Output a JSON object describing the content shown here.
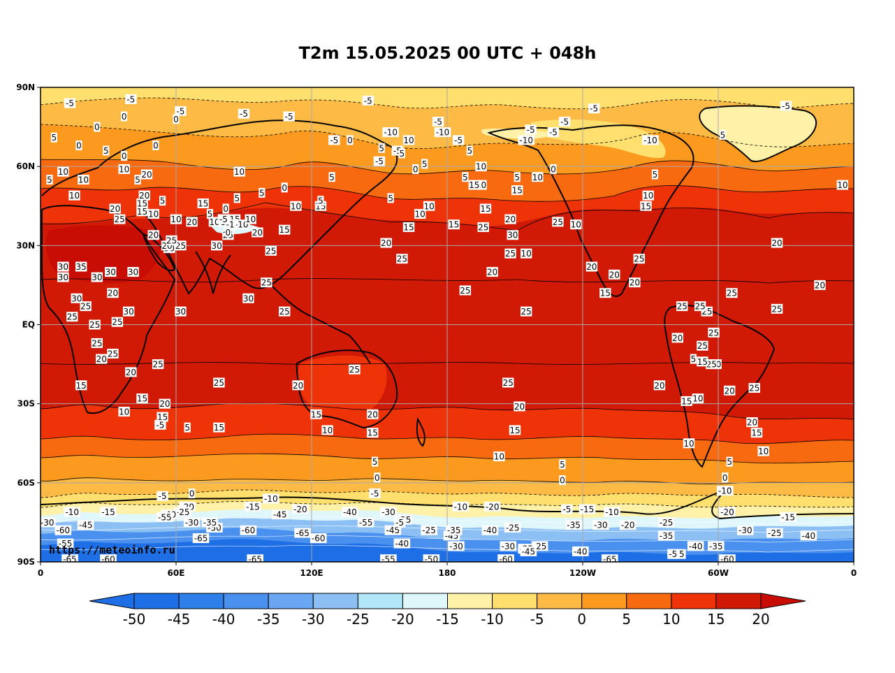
{
  "title": "T2m 15.05.2025 00 UTC + 048h",
  "watermark": "https://meteoinfo.ru",
  "lat_labels": [
    "90N",
    "60N",
    "30N",
    "EQ",
    "30S",
    "60S",
    "90S"
  ],
  "lon_labels": [
    "0",
    "60E",
    "120E",
    "180",
    "120W",
    "60W",
    "0"
  ],
  "colorbar": {
    "ticks": [
      "-50",
      "-45",
      "-40",
      "-35",
      "-30",
      "-25",
      "-20",
      "-15",
      "-10",
      "-5",
      "0",
      "5",
      "10",
      "15",
      "20"
    ],
    "colors": [
      "#1e6fe6",
      "#2f7fea",
      "#4a90ee",
      "#6aa6f2",
      "#8cc0f5",
      "#b0e6f8",
      "#dff6fb",
      "#fff2a8",
      "#ffdf6e",
      "#fdbb46",
      "#fb9a1e",
      "#f86a10",
      "#ee3308",
      "#d01a06"
    ],
    "under_color": "#1e6fe6",
    "over_color": "#c80e04"
  },
  "contour_labels": [
    {
      "t": "-5",
      "lon": 13,
      "lat": 84
    },
    {
      "t": "-5",
      "lon": 40,
      "lat": 85.5
    },
    {
      "t": "-5",
      "lon": 62,
      "lat": 81
    },
    {
      "t": "-5",
      "lon": 110,
      "lat": 79
    },
    {
      "t": "-5",
      "lon": 145,
      "lat": 85
    },
    {
      "t": "-5",
      "lon": -115,
      "lat": 82
    },
    {
      "t": "-5",
      "lon": -30,
      "lat": 83
    },
    {
      "t": "0",
      "lon": 37,
      "lat": 79
    },
    {
      "t": "0",
      "lon": 25,
      "lat": 75
    },
    {
      "t": "5",
      "lon": 6,
      "lat": 71
    },
    {
      "t": "0",
      "lon": 17,
      "lat": 68
    },
    {
      "t": "5",
      "lon": 29,
      "lat": 66
    },
    {
      "t": "0",
      "lon": 37,
      "lat": 64
    },
    {
      "t": "0",
      "lon": 51,
      "lat": 68
    },
    {
      "t": "-5",
      "lon": 158,
      "lat": 66
    },
    {
      "t": "10",
      "lon": 10,
      "lat": 58
    },
    {
      "t": "5",
      "lon": 4,
      "lat": 55
    },
    {
      "t": "10",
      "lon": -5,
      "lat": 53
    },
    {
      "t": "10",
      "lon": 19,
      "lat": 55
    },
    {
      "t": "10",
      "lon": 37,
      "lat": 59
    },
    {
      "t": "10",
      "lon": 15,
      "lat": 49
    },
    {
      "t": "5",
      "lon": 43,
      "lat": 55
    },
    {
      "t": "0",
      "lon": 60,
      "lat": 78
    },
    {
      "t": "-5",
      "lon": 90,
      "lat": 80
    },
    {
      "t": "-10",
      "lon": 155,
      "lat": 73
    },
    {
      "t": "10",
      "lon": 163,
      "lat": 70
    },
    {
      "t": "5",
      "lon": 160,
      "lat": 65
    },
    {
      "t": "5",
      "lon": 151,
      "lat": 67
    },
    {
      "t": "-5",
      "lon": 130,
      "lat": 70
    },
    {
      "t": "-10",
      "lon": 178,
      "lat": 73
    },
    {
      "t": "-5",
      "lon": -175,
      "lat": 70
    },
    {
      "t": "5",
      "lon": -170,
      "lat": 66
    },
    {
      "t": "10",
      "lon": -165,
      "lat": 60
    },
    {
      "t": "10",
      "lon": -165,
      "lat": 53
    },
    {
      "t": "5",
      "lon": -172,
      "lat": 56
    },
    {
      "t": "15",
      "lon": -163,
      "lat": 44
    },
    {
      "t": "25",
      "lon": -164,
      "lat": 37
    },
    {
      "t": "20",
      "lon": -152,
      "lat": 40
    },
    {
      "t": "30",
      "lon": -151,
      "lat": 34
    },
    {
      "t": "20",
      "lon": -160,
      "lat": 20
    },
    {
      "t": "10",
      "lon": -188,
      "lat": 45
    },
    {
      "t": "15",
      "lon": -177,
      "lat": 38
    },
    {
      "t": "-5",
      "lon": -184,
      "lat": 77
    },
    {
      "t": "-5",
      "lon": -128,
      "lat": 77
    },
    {
      "t": "-5",
      "lon": -133,
      "lat": 73
    },
    {
      "t": "-5",
      "lon": -143,
      "lat": 74
    },
    {
      "t": "-10",
      "lon": -145,
      "lat": 70
    },
    {
      "t": "0",
      "lon": -133,
      "lat": 59
    },
    {
      "t": "10",
      "lon": -140,
      "lat": 56
    },
    {
      "t": "15",
      "lon": -149,
      "lat": 51
    },
    {
      "t": "5",
      "lon": -149,
      "lat": 56
    },
    {
      "t": "15",
      "lon": -168,
      "lat": 53
    },
    {
      "t": "10",
      "lon": -123,
      "lat": 38
    },
    {
      "t": "25",
      "lon": -131,
      "lat": 39
    },
    {
      "t": "5",
      "lon": -88,
      "lat": 57
    },
    {
      "t": "10",
      "lon": -91,
      "lat": 49
    },
    {
      "t": "-10",
      "lon": -90,
      "lat": 70
    },
    {
      "t": "15",
      "lon": -92,
      "lat": 45
    },
    {
      "t": "20",
      "lon": -116,
      "lat": 22
    },
    {
      "t": "25",
      "lon": -152,
      "lat": 27
    },
    {
      "t": "25",
      "lon": -95,
      "lat": 25
    },
    {
      "t": "20",
      "lon": -97,
      "lat": 16
    },
    {
      "t": "15",
      "lon": -110,
      "lat": 12
    },
    {
      "t": "10",
      "lon": -145,
      "lat": 27
    },
    {
      "t": "5",
      "lon": -58,
      "lat": 72
    },
    {
      "t": "20",
      "lon": -34,
      "lat": 31
    },
    {
      "t": "25",
      "lon": -54,
      "lat": 12
    },
    {
      "t": "25",
      "lon": -65,
      "lat": 5
    },
    {
      "t": "25",
      "lon": -34,
      "lat": 6
    },
    {
      "t": "20",
      "lon": -61,
      "lat": -15
    },
    {
      "t": "25",
      "lon": -62,
      "lat": -3
    },
    {
      "t": "20",
      "lon": -15,
      "lat": 15
    },
    {
      "t": "35",
      "lon": 18,
      "lat": 22
    },
    {
      "t": "30",
      "lon": 10,
      "lat": 22
    },
    {
      "t": "25",
      "lon": 20,
      "lat": 7
    },
    {
      "t": "20",
      "lon": 32,
      "lat": 12
    },
    {
      "t": "30",
      "lon": 25,
      "lat": 18
    },
    {
      "t": "30",
      "lon": 16,
      "lat": 10
    },
    {
      "t": "25",
      "lon": 14,
      "lat": 3
    },
    {
      "t": "30",
      "lon": 10,
      "lat": 18
    },
    {
      "t": "25",
      "lon": 24,
      "lat": 0
    },
    {
      "t": "20",
      "lon": 27,
      "lat": -13
    },
    {
      "t": "15",
      "lon": 18,
      "lat": -23
    },
    {
      "t": "25",
      "lon": 34,
      "lat": 1
    },
    {
      "t": "30",
      "lon": 39,
      "lat": 5
    },
    {
      "t": "25",
      "lon": 25,
      "lat": -7
    },
    {
      "t": "30",
      "lon": 41,
      "lat": 20
    },
    {
      "t": "30",
      "lon": 31,
      "lat": 20
    },
    {
      "t": "25",
      "lon": 32,
      "lat": -11
    },
    {
      "t": "10",
      "lon": 37,
      "lat": -33
    },
    {
      "t": "20",
      "lon": 40,
      "lat": -18
    },
    {
      "t": "15",
      "lon": 45,
      "lat": -28
    },
    {
      "t": "30",
      "lon": 62,
      "lat": 5
    },
    {
      "t": "25",
      "lon": 52,
      "lat": -15
    },
    {
      "t": "15",
      "lon": 54,
      "lat": -35
    },
    {
      "t": "5",
      "lon": 65,
      "lat": -39
    },
    {
      "t": "20",
      "lon": 50,
      "lat": 34
    },
    {
      "t": "25",
      "lon": 62,
      "lat": 30
    },
    {
      "t": "30",
      "lon": 57,
      "lat": 29
    },
    {
      "t": "20",
      "lon": 56,
      "lat": 30
    },
    {
      "t": "25",
      "lon": 58,
      "lat": 32
    },
    {
      "t": "15",
      "lon": 45,
      "lat": 43
    },
    {
      "t": "10",
      "lon": 50,
      "lat": 42
    },
    {
      "t": "5",
      "lon": 54,
      "lat": 47
    },
    {
      "t": "20",
      "lon": 46,
      "lat": 49
    },
    {
      "t": "15",
      "lon": 45,
      "lat": 46
    },
    {
      "t": "20",
      "lon": 33,
      "lat": 44
    },
    {
      "t": "25",
      "lon": 35,
      "lat": 40
    },
    {
      "t": "30",
      "lon": 78,
      "lat": 30
    },
    {
      "t": "25",
      "lon": 83,
      "lat": 34
    },
    {
      "t": "15",
      "lon": 86,
      "lat": 40
    },
    {
      "t": "20",
      "lon": 67,
      "lat": 39
    },
    {
      "t": "10",
      "lon": 60,
      "lat": 40
    },
    {
      "t": "20",
      "lon": 47,
      "lat": 57
    },
    {
      "t": "15",
      "lon": 72,
      "lat": 46
    },
    {
      "t": "5",
      "lon": 75,
      "lat": 42
    },
    {
      "t": "10",
      "lon": 77,
      "lat": 39
    },
    {
      "t": "5",
      "lon": 81,
      "lat": 39
    },
    {
      "t": "-10",
      "lon": 89,
      "lat": 38
    },
    {
      "t": "-1",
      "lon": 84,
      "lat": 38
    },
    {
      "t": "0",
      "lon": 83,
      "lat": 35
    },
    {
      "t": "10",
      "lon": 93,
      "lat": 40
    },
    {
      "t": "20",
      "lon": 96,
      "lat": 35
    },
    {
      "t": "25",
      "lon": 102,
      "lat": 28
    },
    {
      "t": "15",
      "lon": 108,
      "lat": 36
    },
    {
      "t": "10",
      "lon": 113,
      "lat": 45
    },
    {
      "t": "15",
      "lon": 124,
      "lat": 45
    },
    {
      "t": "5",
      "lon": 124,
      "lat": 47
    },
    {
      "t": "5",
      "lon": 129,
      "lat": 56
    },
    {
      "t": "0",
      "lon": 108,
      "lat": 52
    },
    {
      "t": "5",
      "lon": 98,
      "lat": 50
    },
    {
      "t": "10",
      "lon": 88,
      "lat": 58
    },
    {
      "t": "-5",
      "lon": 81,
      "lat": 40
    },
    {
      "t": "0",
      "lon": 82,
      "lat": 44
    },
    {
      "t": "5",
      "lon": 87,
      "lat": 48
    },
    {
      "t": "30",
      "lon": 92,
      "lat": 10
    },
    {
      "t": "25",
      "lon": 100,
      "lat": 16
    },
    {
      "t": "25",
      "lon": 108,
      "lat": 5
    },
    {
      "t": "5",
      "lon": 155,
      "lat": 48
    },
    {
      "t": "-5",
      "lon": 150,
      "lat": 62
    },
    {
      "t": "0",
      "lon": 137,
      "lat": 70
    },
    {
      "t": "5",
      "lon": 170,
      "lat": 61
    },
    {
      "t": "0",
      "lon": 166,
      "lat": 59
    },
    {
      "t": "10",
      "lon": 168,
      "lat": 42
    },
    {
      "t": "15",
      "lon": 163,
      "lat": 37
    },
    {
      "t": "20",
      "lon": 153,
      "lat": 31
    },
    {
      "t": "25",
      "lon": 160,
      "lat": 25
    },
    {
      "t": "25",
      "lon": 188,
      "lat": 13
    },
    {
      "t": "25",
      "lon": 215,
      "lat": 5
    },
    {
      "t": "20",
      "lon": 114,
      "lat": -23
    },
    {
      "t": "25",
      "lon": 139,
      "lat": -17
    },
    {
      "t": "15",
      "lon": 122,
      "lat": -34
    },
    {
      "t": "10",
      "lon": 127,
      "lat": -40
    },
    {
      "t": "20",
      "lon": 147,
      "lat": -34
    },
    {
      "t": "15",
      "lon": 147,
      "lat": -41
    },
    {
      "t": "5",
      "lon": 148,
      "lat": -52
    },
    {
      "t": "0",
      "lon": 149,
      "lat": -58
    },
    {
      "t": "-5",
      "lon": 148,
      "lat": -64
    },
    {
      "t": "10",
      "lon": 203,
      "lat": -50
    },
    {
      "t": "15",
      "lon": 210,
      "lat": -40
    },
    {
      "t": "20",
      "lon": 212,
      "lat": -31
    },
    {
      "t": "25",
      "lon": 207,
      "lat": -22
    },
    {
      "t": "25",
      "lon": 79,
      "lat": -22
    },
    {
      "t": "20",
      "lon": 55,
      "lat": -30
    },
    {
      "t": "15",
      "lon": 79,
      "lat": -39
    },
    {
      "t": "-5",
      "lon": 233,
      "lat": -70
    },
    {
      "t": "5",
      "lon": 231,
      "lat": -53
    },
    {
      "t": "0",
      "lon": 231,
      "lat": -59
    },
    {
      "t": "5",
      "lon": 305,
      "lat": -52
    },
    {
      "t": "0",
      "lon": 303,
      "lat": -58
    },
    {
      "t": "-10",
      "lon": 303,
      "lat": -63
    },
    {
      "t": "10",
      "lon": 320,
      "lat": -48
    },
    {
      "t": "15",
      "lon": 317,
      "lat": -41
    },
    {
      "t": "20",
      "lon": 315,
      "lat": -37
    },
    {
      "t": "25",
      "lon": 297,
      "lat": -15
    },
    {
      "t": "25",
      "lon": 316,
      "lat": -24
    },
    {
      "t": "20",
      "lon": 305,
      "lat": -25
    },
    {
      "t": "15",
      "lon": 286,
      "lat": -29
    },
    {
      "t": "10",
      "lon": 291,
      "lat": -28
    },
    {
      "t": "15",
      "lon": 293,
      "lat": -14
    },
    {
      "t": "5",
      "lon": 289,
      "lat": -13
    },
    {
      "t": "25",
      "lon": 293,
      "lat": -8
    },
    {
      "t": "20",
      "lon": 282,
      "lat": -5
    },
    {
      "t": "10",
      "lon": 287,
      "lat": -45
    },
    {
      "t": "20",
      "lon": 274,
      "lat": -23
    },
    {
      "t": "25",
      "lon": 292,
      "lat": 7
    },
    {
      "t": "25",
      "lon": 284,
      "lat": 7
    },
    {
      "t": "20",
      "lon": 254,
      "lat": 19
    },
    {
      "t": "-20",
      "lon": 304,
      "lat": -71
    },
    {
      "t": "-15",
      "lon": 331,
      "lat": -73
    },
    {
      "t": "-25",
      "lon": 277,
      "lat": -75
    },
    {
      "t": "-40",
      "lon": 340,
      "lat": -80
    },
    {
      "t": "-35",
      "lon": 277,
      "lat": -80
    },
    {
      "t": "-25",
      "lon": 325,
      "lat": -79
    },
    {
      "t": "-30",
      "lon": 312,
      "lat": -78
    },
    {
      "t": "-35",
      "lon": 299,
      "lat": -84
    },
    {
      "t": "-40",
      "lon": 290,
      "lat": -84
    },
    {
      "t": "-45",
      "lon": 282,
      "lat": -87
    },
    {
      "t": "-60",
      "lon": 304,
      "lat": -89
    },
    {
      "t": "-5",
      "lon": 280,
      "lat": -87
    },
    {
      "t": "-20",
      "lon": 260,
      "lat": -76
    },
    {
      "t": "-30",
      "lon": 248,
      "lat": -76
    },
    {
      "t": "-35",
      "lon": 236,
      "lat": -76
    },
    {
      "t": "-10",
      "lon": 253,
      "lat": -71
    },
    {
      "t": "-15",
      "lon": 242,
      "lat": -70
    },
    {
      "t": "-40",
      "lon": 239,
      "lat": -86
    },
    {
      "t": "-65",
      "lon": 252,
      "lat": -89
    },
    {
      "t": "-25",
      "lon": 221,
      "lat": -84
    },
    {
      "t": "-35",
      "lon": 215,
      "lat": -85
    },
    {
      "t": "-45",
      "lon": 216,
      "lat": -86
    },
    {
      "t": "-30",
      "lon": 207,
      "lat": -84
    },
    {
      "t": "-60",
      "lon": 206,
      "lat": -89
    },
    {
      "t": "-40",
      "lon": 199,
      "lat": -78
    },
    {
      "t": "-20",
      "lon": 200,
      "lat": -69
    },
    {
      "t": "-25",
      "lon": 209,
      "lat": -77
    },
    {
      "t": "-10",
      "lon": 186,
      "lat": -69
    },
    {
      "t": "-45",
      "lon": 182,
      "lat": -80
    },
    {
      "t": "-35",
      "lon": 183,
      "lat": -78
    },
    {
      "t": "-25",
      "lon": 172,
      "lat": -78
    },
    {
      "t": "-30",
      "lon": 184,
      "lat": -84
    },
    {
      "t": "-50",
      "lon": 173,
      "lat": -89
    },
    {
      "t": "-35",
      "lon": 161,
      "lat": -74
    },
    {
      "t": "-45",
      "lon": 156,
      "lat": -78
    },
    {
      "t": "-40",
      "lon": 160,
      "lat": -83
    },
    {
      "t": "-55",
      "lon": 154,
      "lat": -89
    },
    {
      "t": "-5",
      "lon": 159,
      "lat": -75
    },
    {
      "t": "-30",
      "lon": 154,
      "lat": -71
    },
    {
      "t": "-55",
      "lon": 144,
      "lat": -75
    },
    {
      "t": "-40",
      "lon": 137,
      "lat": -71
    },
    {
      "t": "-65",
      "lon": 116,
      "lat": -79
    },
    {
      "t": "-60",
      "lon": 123,
      "lat": -81
    },
    {
      "t": "-65",
      "lon": 95,
      "lat": -89
    },
    {
      "t": "-60",
      "lon": 92,
      "lat": -78
    },
    {
      "t": "-50",
      "lon": 77,
      "lat": -77
    },
    {
      "t": "-35",
      "lon": 75,
      "lat": -75
    },
    {
      "t": "-65",
      "lon": 71,
      "lat": -81
    },
    {
      "t": "-30",
      "lon": 67,
      "lat": -75
    },
    {
      "t": "-20",
      "lon": 65,
      "lat": -69
    },
    {
      "t": "-25",
      "lon": 63,
      "lat": -71
    },
    {
      "t": "-40",
      "lon": 57,
      "lat": -72
    },
    {
      "t": "-55",
      "lon": 55,
      "lat": -73
    },
    {
      "t": "-15",
      "lon": 30,
      "lat": -71
    },
    {
      "t": "-10",
      "lon": 14,
      "lat": -71
    },
    {
      "t": "-45",
      "lon": 20,
      "lat": -76
    },
    {
      "t": "-60",
      "lon": 10,
      "lat": -78
    },
    {
      "t": "-30",
      "lon": 3,
      "lat": -75
    },
    {
      "t": "-55",
      "lon": 11,
      "lat": -83
    },
    {
      "t": "-65",
      "lon": 13,
      "lat": -89
    },
    {
      "t": "-60",
      "lon": 30,
      "lat": -89
    },
    {
      "t": "-5",
      "lon": 54,
      "lat": -65
    },
    {
      "t": "0",
      "lon": 67,
      "lat": -64
    },
    {
      "t": "-15",
      "lon": 94,
      "lat": -69
    },
    {
      "t": "-10",
      "lon": 102,
      "lat": -66
    },
    {
      "t": "-45",
      "lon": 106,
      "lat": -72
    },
    {
      "t": "-20",
      "lon": 115,
      "lat": -70
    },
    {
      "t": "-5",
      "lon": 53,
      "lat": -38
    }
  ]
}
